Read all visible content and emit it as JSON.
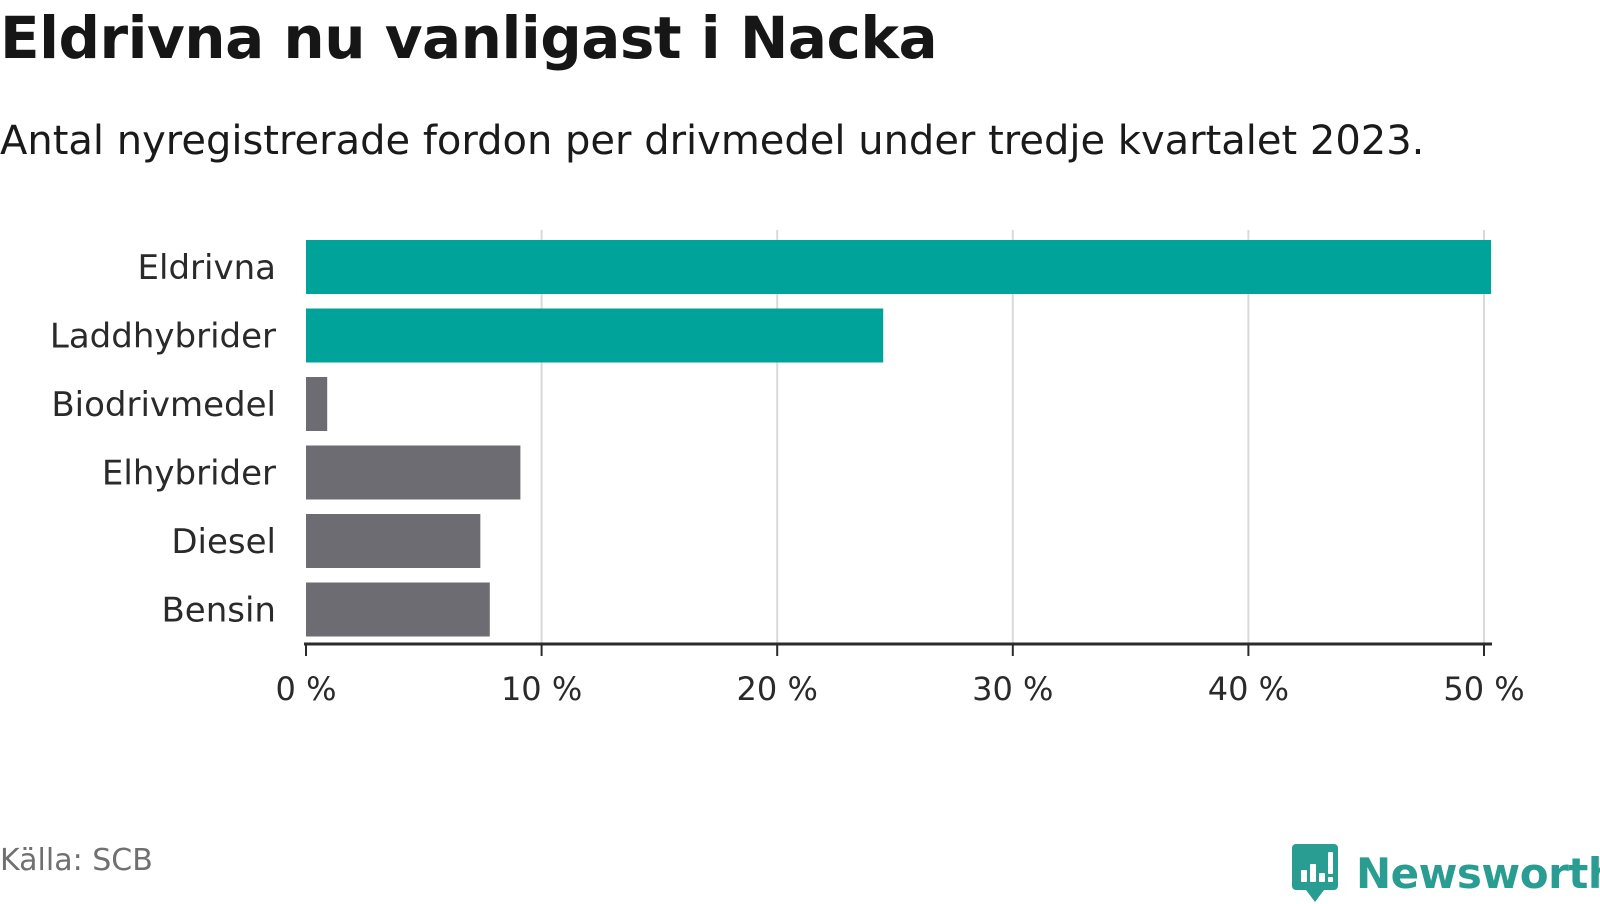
{
  "title": "Eldrivna nu vanligast i Nacka",
  "subtitle": "Antal nyregistrerade fordon per drivmedel under tredje kvartalet 2023.",
  "source": "Källa: SCB",
  "logo_text": "Newsworthy",
  "colors": {
    "highlight": "#00a39a",
    "muted": "#6d6c72",
    "grid": "#d9d9d9",
    "axis": "#2b2b2b",
    "brand": "#2a9d92"
  },
  "chart_data": {
    "type": "bar",
    "orientation": "horizontal",
    "categories": [
      "Eldrivna",
      "Laddhybrider",
      "Biodrivmedel",
      "Elhybrider",
      "Diesel",
      "Bensin"
    ],
    "values": [
      50.3,
      24.5,
      0.9,
      9.1,
      7.4,
      7.8
    ],
    "highlighted": [
      true,
      true,
      false,
      false,
      false,
      false
    ],
    "xlim": [
      0,
      50
    ],
    "xticks": [
      0,
      10,
      20,
      30,
      40,
      50
    ],
    "xtick_labels": [
      "0 %",
      "10 %",
      "20 %",
      "30 %",
      "40 %",
      "50 %"
    ],
    "grid": true
  }
}
